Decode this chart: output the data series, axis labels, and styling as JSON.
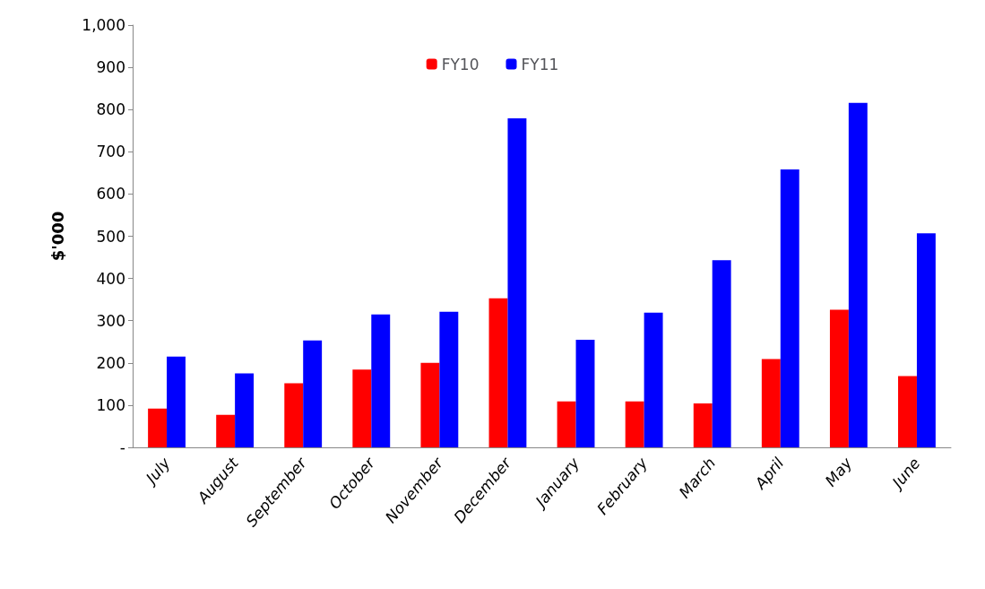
{
  "chart_data": {
    "type": "bar",
    "ylabel": "$'000",
    "categories": [
      "July",
      "August",
      "September",
      "October",
      "November",
      "December",
      "January",
      "February",
      "March",
      "April",
      "May",
      "June"
    ],
    "series": [
      {
        "name": "FY10",
        "color": "#ff0000",
        "values": [
          92,
          77,
          152,
          184,
          200,
          353,
          109,
          109,
          104,
          209,
          326,
          169
        ]
      },
      {
        "name": "FY11",
        "color": "#0000ff",
        "values": [
          215,
          175,
          253,
          315,
          321,
          779,
          255,
          319,
          443,
          658,
          816,
          507
        ]
      }
    ],
    "ylim": [
      0,
      1000
    ],
    "yticks": [
      {
        "value": 0,
        "label": "-"
      },
      100,
      200,
      300,
      400,
      500,
      600,
      700,
      800,
      900,
      {
        "value": 1000,
        "label": "1,000"
      }
    ],
    "grid": false,
    "legend": "top"
  }
}
